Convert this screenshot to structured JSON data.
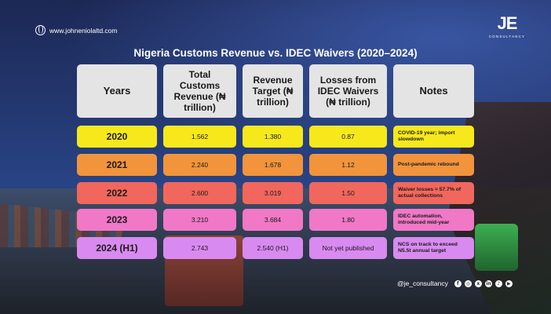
{
  "website": "www.johneniolaltd.com",
  "logo": {
    "mark": "JE",
    "sub": "CONSULTANCY"
  },
  "title": "Nigeria Customs Revenue vs. IDEC Waivers (2020–2024)",
  "headers": {
    "years": "Years",
    "revenue": "Total Customs Revenue (₦ trillion)",
    "target": "Revenue Target (₦ trillion)",
    "losses": "Losses from IDEC Waivers (₦ trillion)",
    "notes": "Notes"
  },
  "rows": [
    {
      "year": "2020",
      "revenue": "1.562",
      "target": "1.380",
      "losses": "0.87",
      "note": "COVID-19 year; import slowdown",
      "color": "#f7e81b"
    },
    {
      "year": "2021",
      "revenue": "2.240",
      "target": "1.678",
      "losses": "1.12",
      "note": "Post-pandemic rebound",
      "color": "#f2943c"
    },
    {
      "year": "2022",
      "revenue": "2.600",
      "target": "3.019",
      "losses": "1.50",
      "note": "Waiver losses ≈ 57.7% of actual collections",
      "color": "#f1675d"
    },
    {
      "year": "2023",
      "revenue": "3.210",
      "target": "3.684",
      "losses": "1.80",
      "note": "IDEC automation, introduced mid-year",
      "color": "#f078c7"
    },
    {
      "year": "2024 (H1)",
      "revenue": "2.743",
      "target": "2.540 (H1)",
      "losses": "Not yet published",
      "note": "NCS on track to exceed N5.5t annual target",
      "color": "#d98af0"
    }
  ],
  "social": {
    "handle": "@je_consultancy",
    "icons": [
      "facebook-icon",
      "instagram-icon",
      "x-icon",
      "linkedin-icon",
      "tiktok-icon",
      "youtube-icon"
    ]
  }
}
